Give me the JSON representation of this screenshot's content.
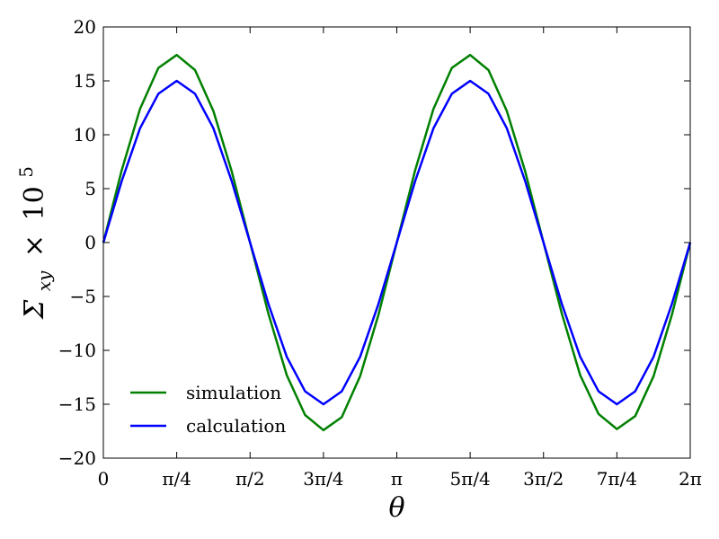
{
  "chart_data": {
    "type": "line",
    "xlabel": "θ",
    "ylabel": {
      "symbol": "Σ",
      "subscript": "xy",
      "times": "×",
      "base": "10",
      "exponent": "5"
    },
    "xlim": [
      0,
      6.2832
    ],
    "ylim": [
      -20,
      20
    ],
    "grid": false,
    "legend_position": "lower-left",
    "x_ticks": [
      {
        "value": 0,
        "label": "0"
      },
      {
        "value": 0.7854,
        "label": "π/4"
      },
      {
        "value": 1.5708,
        "label": "π/2"
      },
      {
        "value": 2.3562,
        "label": "3π/4"
      },
      {
        "value": 3.1416,
        "label": "π"
      },
      {
        "value": 3.927,
        "label": "5π/4"
      },
      {
        "value": 4.7124,
        "label": "3π/2"
      },
      {
        "value": 5.4978,
        "label": "7π/4"
      },
      {
        "value": 6.2832,
        "label": "2π"
      }
    ],
    "y_ticks": [
      {
        "value": 20,
        "label": "20"
      },
      {
        "value": 15,
        "label": "15"
      },
      {
        "value": 10,
        "label": "10"
      },
      {
        "value": 5,
        "label": "5"
      },
      {
        "value": 0,
        "label": "0"
      },
      {
        "value": -5,
        "label": "−5"
      },
      {
        "value": -10,
        "label": "−10"
      },
      {
        "value": -15,
        "label": "−15"
      },
      {
        "value": -20,
        "label": "−20"
      }
    ],
    "x": [
      0,
      0.1963,
      0.3927,
      0.589,
      0.7854,
      0.9817,
      1.1781,
      1.3744,
      1.5708,
      1.7671,
      1.9635,
      2.1598,
      2.3562,
      2.5525,
      2.7489,
      2.9452,
      3.1416,
      3.3379,
      3.5343,
      3.7306,
      3.927,
      4.1233,
      4.3197,
      4.516,
      4.7124,
      4.9087,
      5.1051,
      5.3014,
      5.4978,
      5.6941,
      5.8905,
      6.0868,
      6.2832
    ],
    "series": [
      {
        "name": "simulation",
        "color": "#008000",
        "values": [
          0,
          6.7,
          12.4,
          16.2,
          17.4,
          16.0,
          12.2,
          6.6,
          0,
          -6.6,
          -12.3,
          -16.0,
          -17.4,
          -16.2,
          -12.4,
          -6.7,
          0,
          6.7,
          12.4,
          16.2,
          17.4,
          16.0,
          12.2,
          6.6,
          0,
          -6.6,
          -12.3,
          -15.9,
          -17.3,
          -16.1,
          -12.4,
          -6.7,
          0
        ]
      },
      {
        "name": "calculation",
        "color": "#0000ff",
        "values": [
          0,
          5.7,
          10.6,
          13.8,
          15.0,
          13.8,
          10.6,
          5.7,
          0,
          -5.7,
          -10.6,
          -13.8,
          -15.0,
          -13.8,
          -10.6,
          -5.7,
          0,
          5.7,
          10.6,
          13.8,
          15.0,
          13.8,
          10.6,
          5.7,
          0,
          -5.7,
          -10.6,
          -13.8,
          -15.0,
          -13.8,
          -10.6,
          -5.7,
          0
        ]
      }
    ]
  }
}
